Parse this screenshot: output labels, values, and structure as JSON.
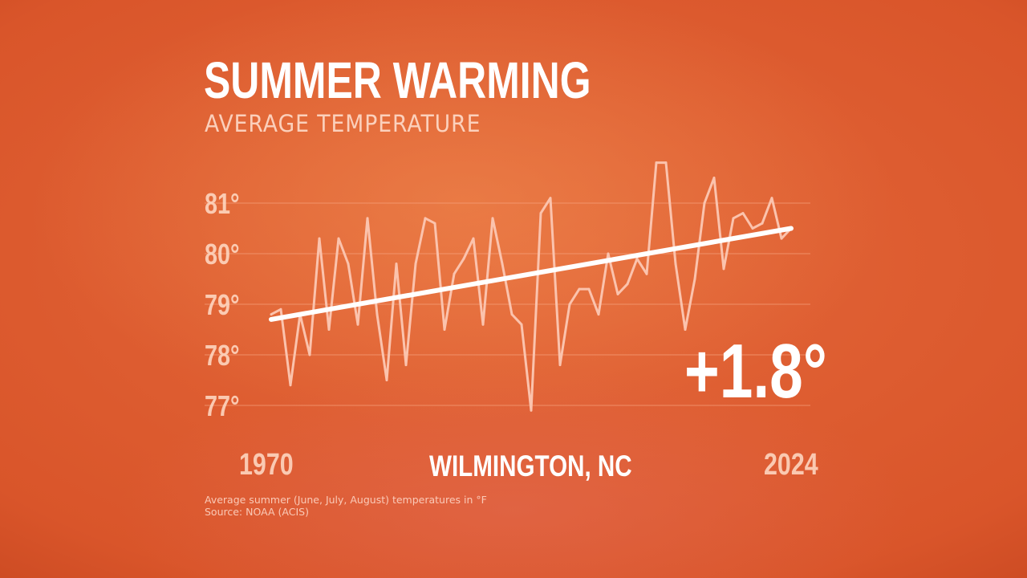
{
  "title": "SUMMER WARMING",
  "subtitle": "AVERAGE TEMPERATURE",
  "location": "WILMINGTON, NC",
  "change_label": "+1.8°",
  "footnote": {
    "line1": "Average summer (June, July, August) temperatures in °F",
    "line2": "Source: NOAA (ACIS)"
  },
  "colors": {
    "background": "#d9552a",
    "series_line": "#fbc3ad",
    "trend_line": "#ffffff",
    "gridline": "#f7a27e"
  },
  "chart_data": {
    "type": "line",
    "title": "SUMMER WARMING",
    "subtitle": "AVERAGE TEMPERATURE",
    "xlabel": "",
    "ylabel": "",
    "x_tick_labels": [
      "1970",
      "2024"
    ],
    "y_tick_labels": [
      "77°",
      "78°",
      "79°",
      "80°",
      "81°"
    ],
    "y_ticks": [
      77,
      78,
      79,
      80,
      81
    ],
    "xlim": [
      1970,
      2024
    ],
    "ylim": [
      76.6,
      81.6
    ],
    "grid": true,
    "legend": "none",
    "series": [
      {
        "x": [
          1970,
          1971,
          1972,
          1973,
          1974,
          1975,
          1976,
          1977,
          1978,
          1979,
          1980,
          1981,
          1982,
          1983,
          1984,
          1985,
          1986,
          1987,
          1988,
          1989,
          1990,
          1991,
          1992,
          1993,
          1994,
          1995,
          1996,
          1997,
          1998,
          1999,
          2000,
          2001,
          2002,
          2003,
          2004,
          2005,
          2006,
          2007,
          2008,
          2009,
          2010,
          2011,
          2012,
          2013,
          2014,
          2015,
          2016,
          2017,
          2018,
          2019,
          2020,
          2021,
          2022,
          2023,
          2024
        ],
        "values": [
          78.8,
          78.9,
          77.4,
          78.8,
          78.0,
          80.3,
          78.5,
          80.3,
          79.8,
          78.6,
          80.7,
          78.8,
          77.5,
          79.8,
          77.8,
          79.8,
          80.7,
          80.6,
          78.5,
          79.6,
          79.9,
          80.3,
          78.6,
          80.7,
          79.8,
          78.8,
          78.6,
          76.9,
          80.8,
          81.1,
          77.8,
          79.0,
          79.3,
          79.3,
          78.8,
          80.0,
          79.2,
          79.4,
          79.9,
          79.6,
          81.8,
          81.8,
          79.8,
          78.5,
          79.5,
          81.0,
          81.5,
          79.7,
          80.7,
          80.8,
          80.5,
          80.6,
          81.1,
          80.3,
          80.5
        ]
      },
      {
        "name": "trend",
        "x": [
          1970,
          2024
        ],
        "values": [
          78.7,
          80.5
        ]
      }
    ],
    "annotations": [
      "+1.8°"
    ]
  }
}
